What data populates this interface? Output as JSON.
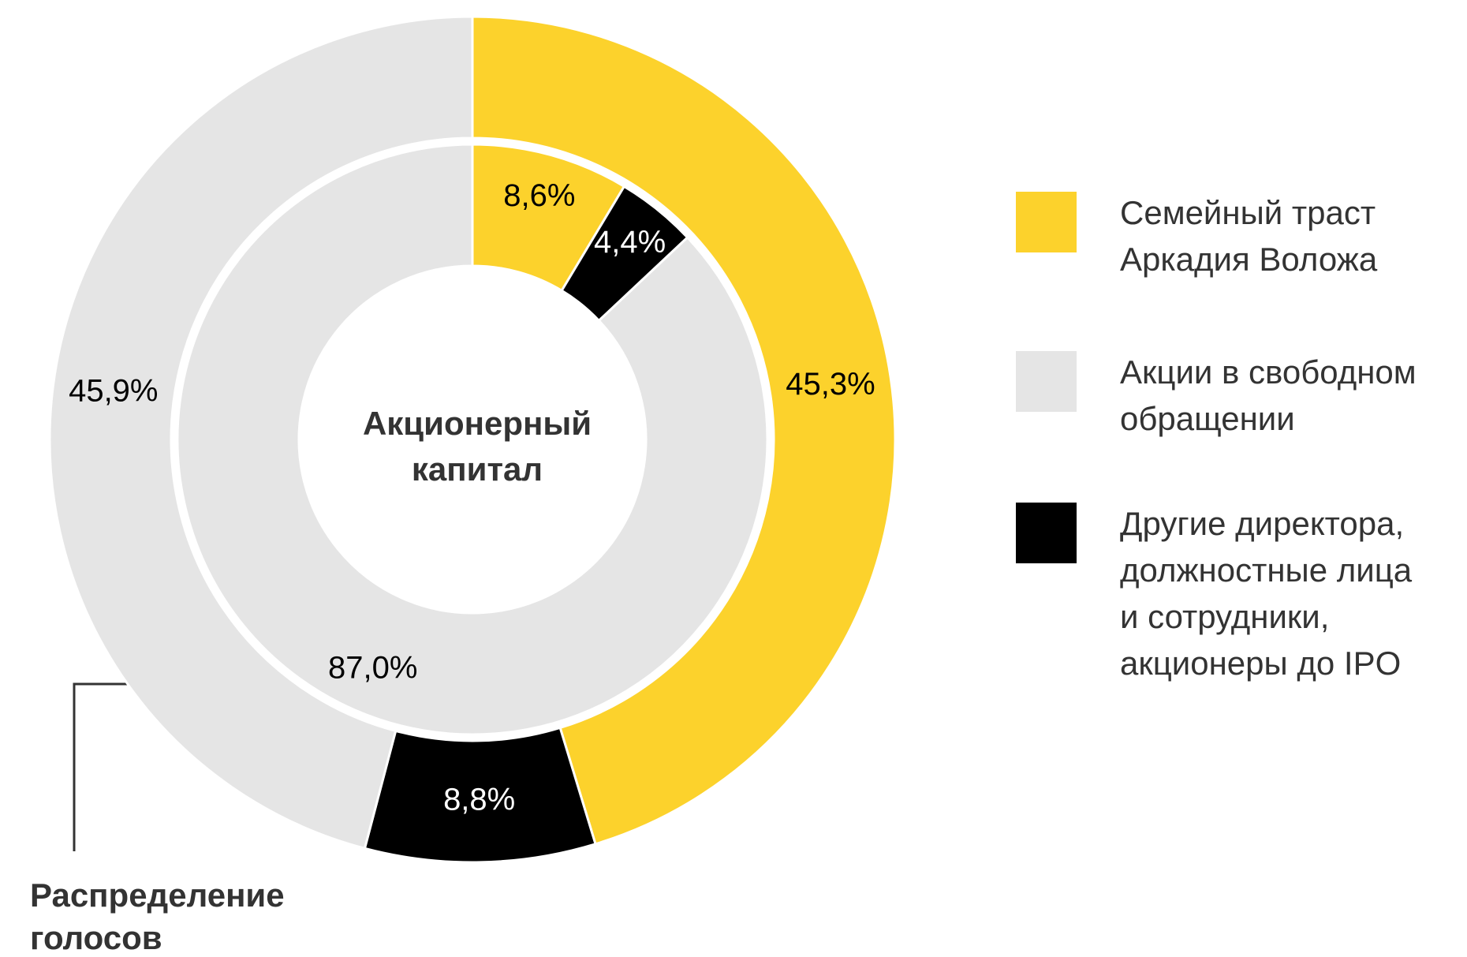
{
  "chart_data": {
    "type": "donut",
    "center_label": [
      "Акционерный",
      "капитал"
    ],
    "ring_label": [
      "Распределение",
      "голосов"
    ],
    "categories": [
      [
        "Семейный траст",
        "Аркадия Воложа"
      ],
      [
        "Акции в свободном",
        "обращении"
      ],
      [
        "Другие директора,",
        "должностные лица",
        "и сотрудники,",
        "акционеры до IPO"
      ]
    ],
    "colors": [
      "#fcd22c",
      "#e5e5e5",
      "#000000"
    ],
    "series": [
      {
        "values": [
          45.3,
          45.9,
          8.8
        ],
        "value_labels": [
          "45,3%",
          "45,9%",
          "8,8%"
        ]
      },
      {
        "values": [
          8.6,
          87.0,
          4.4
        ],
        "value_labels": [
          "8,6%",
          "87,0%",
          "4,4%"
        ]
      }
    ]
  }
}
